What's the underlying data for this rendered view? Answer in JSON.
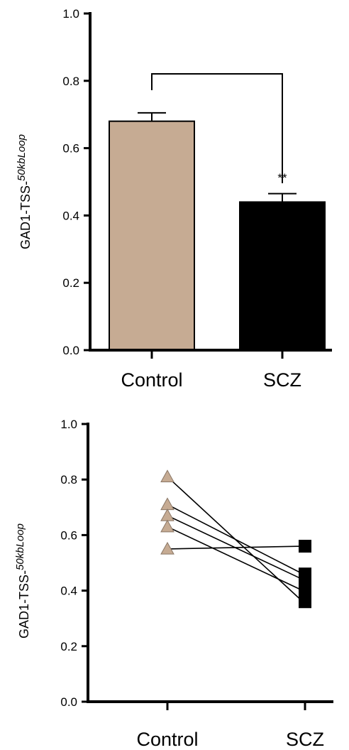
{
  "chart_data": [
    {
      "type": "bar",
      "categories": [
        "Control",
        "SCZ"
      ],
      "values": [
        0.68,
        0.44
      ],
      "errors": [
        0.025,
        0.025
      ],
      "ylabel_main": "GAD1-TSS-",
      "ylabel_sup": "50kbLoop",
      "ylim": [
        0,
        1.0
      ],
      "yticks": [
        "0.0",
        "0.2",
        "0.4",
        "0.6",
        "0.8",
        "1.0"
      ],
      "significance": "**",
      "colors": {
        "Control": "#c6ab93",
        "SCZ": "#000000"
      }
    },
    {
      "type": "scatter",
      "categories": [
        "Control",
        "SCZ"
      ],
      "pairs": [
        [
          0.81,
          0.36
        ],
        [
          0.71,
          0.46
        ],
        [
          0.67,
          0.44
        ],
        [
          0.63,
          0.4
        ],
        [
          0.55,
          0.56
        ]
      ],
      "ylabel_main": "GAD1-TSS-",
      "ylabel_sup": "50kbLoop",
      "ylim": [
        0,
        1.0
      ],
      "yticks": [
        "0.0",
        "0.2",
        "0.4",
        "0.6",
        "0.8",
        "1.0"
      ],
      "colors": {
        "Control": "#c6ab93",
        "SCZ": "#000000"
      }
    }
  ]
}
